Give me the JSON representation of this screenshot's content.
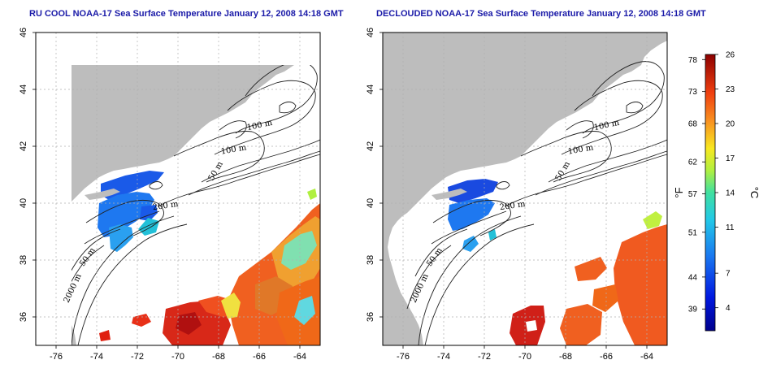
{
  "panels": [
    {
      "title": "RU COOL NOAA-17 Sea Surface Temperature January 12, 2008 14:18 GMT",
      "isobath_labels": [
        "100 m",
        "100 m",
        "50 m",
        "200 m",
        "50 m",
        "2000 m"
      ]
    },
    {
      "title": "DECLOUDED NOAA-17 Sea Surface Temperature January 12, 2008 14:18 GMT",
      "isobath_labels": [
        "100 m",
        "100 m",
        "50 m",
        "200 m",
        "50 m",
        "2000 m"
      ]
    }
  ],
  "axes": {
    "lon_ticks": [
      "-76",
      "-74",
      "-72",
      "-70",
      "-68",
      "-66",
      "-64"
    ],
    "lat_ticks": [
      "36",
      "38",
      "40",
      "42",
      "44",
      "46"
    ]
  },
  "colorbar": {
    "fahrenheit_unit": "°F",
    "celsius_unit": "°C",
    "fahrenheit_ticks": [
      "78",
      "73",
      "68",
      "62",
      "57",
      "51",
      "44",
      "39"
    ],
    "celsius_ticks": [
      "26",
      "23",
      "20",
      "17",
      "14",
      "11",
      "7",
      "4"
    ]
  },
  "colors": {
    "land": "#bdbdbd",
    "ocean": "#ffffff",
    "title": "#1a1aa8",
    "cold": "#1540d8",
    "mid": "#22c0d8",
    "warm": "#f07020",
    "hot": "#c81010"
  }
}
